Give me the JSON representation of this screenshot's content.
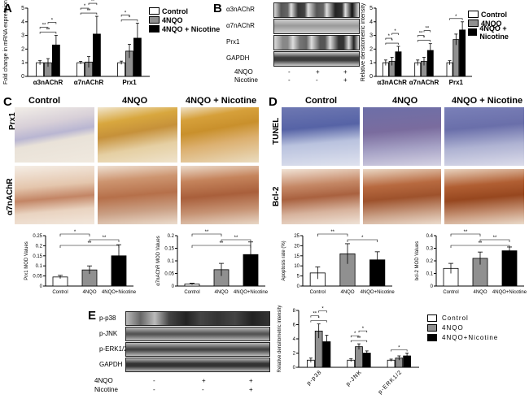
{
  "panel_labels": {
    "A": "A",
    "B": "B",
    "C": "C",
    "D": "D",
    "E": "E"
  },
  "colors": {
    "control": "#ffffff",
    "4nqo": "#909090",
    "4nqo_nicotine": "#000000"
  },
  "legend": {
    "control": "Control",
    "4nqo": "4NQO",
    "4nqo_nicotine": "4NQO + Nicotine"
  },
  "legend_e": {
    "control": "Control",
    "4nqo": "4NQO",
    "4nqo_nicotine": "4NQO+Nicotine"
  },
  "panel_b_blot": {
    "rows": [
      "α3nAChR",
      "α7nAChR",
      "Prx1",
      "GAPDH"
    ],
    "treat_labels": [
      "4NQO",
      "Nicotine"
    ],
    "treat_signs": [
      [
        "-",
        "+",
        "+"
      ],
      [
        "-",
        "-",
        "+"
      ]
    ]
  },
  "panel_c": {
    "col_titles": [
      "Control",
      "4NQO",
      "4NQO + Nicotine"
    ],
    "row_labels": [
      "Prx1",
      "α7nAChR"
    ]
  },
  "panel_d": {
    "col_titles": [
      "Control",
      "4NQO",
      "4NQO + Nicotine"
    ],
    "row_labels": [
      "TUNEL",
      "Bcl-2"
    ]
  },
  "panel_e_blot": {
    "rows": [
      "p-p38",
      "p-JNK",
      "p-ERK1/2",
      "GAPDH"
    ],
    "treat_labels": [
      "4NQO",
      "Nicotine"
    ],
    "treat_signs": [
      [
        "-",
        "+",
        "+"
      ],
      [
        "-",
        "-",
        "+"
      ]
    ]
  },
  "chart_data": [
    {
      "id": "A",
      "type": "bar",
      "ylabel": "Fold change in mRNA expression",
      "categories": [
        "α3nAChR",
        "α7nAChR",
        "Prx1"
      ],
      "series": [
        {
          "name": "Control",
          "values": [
            1.0,
            1.0,
            1.0
          ],
          "errors": [
            0.15,
            0.1,
            0.12
          ]
        },
        {
          "name": "4NQO",
          "values": [
            1.0,
            1.05,
            1.85
          ],
          "errors": [
            0.3,
            0.4,
            0.5
          ]
        },
        {
          "name": "4NQO + Nicotine",
          "values": [
            2.3,
            3.1,
            2.8
          ],
          "errors": [
            0.7,
            1.3,
            1.1
          ]
        }
      ],
      "ylim": [
        0,
        5
      ],
      "yticks": [
        0,
        1,
        2,
        3,
        4,
        5
      ],
      "sig": [
        "**",
        "**",
        "*",
        "**",
        "*",
        "**",
        "*",
        "*"
      ]
    },
    {
      "id": "B",
      "type": "bar",
      "ylabel": "Relative densitometric intensity",
      "categories": [
        "α3nAChR",
        "α7nAChR",
        "Prx1"
      ],
      "series": [
        {
          "name": "Control",
          "values": [
            1.0,
            1.0,
            1.0
          ],
          "errors": [
            0.2,
            0.2,
            0.15
          ]
        },
        {
          "name": "4NQO",
          "values": [
            1.1,
            1.1,
            2.7
          ],
          "errors": [
            0.3,
            0.3,
            0.4
          ]
        },
        {
          "name": "4NQO + Nicotine",
          "values": [
            1.8,
            1.9,
            3.4
          ],
          "errors": [
            0.4,
            0.5,
            0.6
          ]
        }
      ],
      "ylim": [
        0,
        5
      ],
      "yticks": [
        0,
        1,
        2,
        3,
        4,
        5
      ],
      "sig": [
        "*",
        "*",
        "*",
        "*",
        "**",
        "**",
        "*"
      ]
    },
    {
      "id": "C1",
      "type": "bar",
      "ylabel": "Prx1 MOD Values",
      "categories": [
        "Control",
        "4NQO",
        "4NQO+Nicotine"
      ],
      "values": [
        0.045,
        0.08,
        0.15
      ],
      "errors": [
        0.008,
        0.02,
        0.055
      ],
      "ylim": [
        0,
        0.25
      ],
      "yticks": [
        0.0,
        0.05,
        0.1,
        0.15,
        0.2,
        0.25
      ],
      "sig": [
        "*",
        "**",
        "**"
      ]
    },
    {
      "id": "C2",
      "type": "bar",
      "ylabel": "α7nAChR MOD Values",
      "categories": [
        "Control",
        "4NQO",
        "4NQO+Nicotine"
      ],
      "values": [
        0.008,
        0.065,
        0.125
      ],
      "errors": [
        0.003,
        0.025,
        0.05
      ],
      "ylim": [
        0,
        0.2
      ],
      "yticks": [
        0.0,
        0.05,
        0.1,
        0.15,
        0.2
      ],
      "sig": [
        "**",
        "**",
        "**"
      ]
    },
    {
      "id": "D1",
      "type": "bar",
      "ylabel": "Apoptosis rate (%)",
      "categories": [
        "Control",
        "4NQO",
        "4NQO+Nicotine"
      ],
      "values": [
        6.5,
        16,
        13
      ],
      "errors": [
        3,
        5,
        4
      ],
      "ylim": [
        0,
        25
      ],
      "yticks": [
        0,
        5,
        10,
        15,
        20,
        25
      ],
      "sig": [
        "**",
        "*"
      ]
    },
    {
      "id": "D2",
      "type": "bar",
      "ylabel": "bcl-2 MOD Values",
      "categories": [
        "Control",
        "4NQO",
        "4NQO+Nicotine"
      ],
      "values": [
        0.14,
        0.22,
        0.28
      ],
      "errors": [
        0.04,
        0.05,
        0.03
      ],
      "ylim": [
        0,
        0.4
      ],
      "yticks": [
        0.0,
        0.1,
        0.2,
        0.3,
        0.4
      ],
      "sig": [
        "**",
        "**",
        "**"
      ]
    },
    {
      "id": "E",
      "type": "bar",
      "ylabel": "Relative densitometric intensity",
      "categories": [
        "p-p38",
        "p-JNK",
        "p-ERK1/2"
      ],
      "series": [
        {
          "name": "Control",
          "values": [
            1.0,
            1.0,
            1.0
          ],
          "errors": [
            0.3,
            0.2,
            0.15
          ]
        },
        {
          "name": "4NQO",
          "values": [
            5.1,
            2.9,
            1.3
          ],
          "errors": [
            1.0,
            0.4,
            0.3
          ]
        },
        {
          "name": "4NQO+Nicotine",
          "values": [
            3.6,
            2.0,
            1.6
          ],
          "errors": [
            0.9,
            0.3,
            0.4
          ]
        }
      ],
      "ylim": [
        0,
        8
      ],
      "yticks": [
        0,
        2,
        4,
        6,
        8
      ],
      "sig": [
        "*",
        "**",
        "*",
        "**",
        "*",
        "*",
        "*"
      ]
    }
  ]
}
